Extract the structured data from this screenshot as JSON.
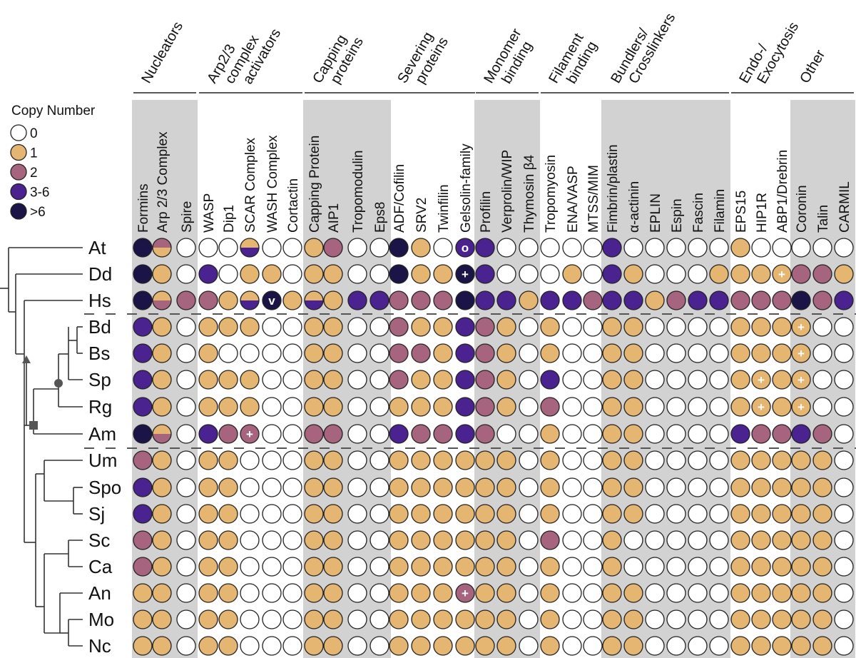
{
  "legend": {
    "title": "Copy Number",
    "items": [
      {
        "code": 0,
        "label": "0",
        "color": "#ffffff"
      },
      {
        "code": 1,
        "label": "1",
        "color": "#E5B672"
      },
      {
        "code": 2,
        "label": "2",
        "color": "#A7647F"
      },
      {
        "code": 3,
        "label": "3-6",
        "color": "#4B2390"
      },
      {
        "code": 4,
        "label": ">6",
        "color": "#1B1446"
      }
    ]
  },
  "chart_data": {
    "type": "heatmap",
    "categories": [
      "Formins",
      "Arp 2/3 Complex",
      "Spire",
      "WASP",
      "Dip1",
      "SCAR Complex",
      "WASH Complex",
      "Cortactin",
      "Capping Protein",
      "AIP1",
      "Tropomodulin",
      "Eps8",
      "ADF/Cofilin",
      "SRV2",
      "Twinfilin",
      "Gelsolin-family",
      "Profilin",
      "Verprolin/WIP",
      "Thymosin β4",
      "Tropomyosin",
      "ENA/VASP",
      "MTSS/MIM",
      "Fimbrin/plastin",
      "α-actinin",
      "EPLIN",
      "Espin",
      "Fascin",
      "Filamin",
      "EPS15",
      "HIP1R",
      "ABP1/Drebrin",
      "Coronin",
      "Talin",
      "CARMIL"
    ],
    "groups": [
      {
        "label": "Nucleators",
        "span": [
          0,
          2
        ],
        "shaded": true
      },
      {
        "label": "Arp2/3 complex activators",
        "span": [
          3,
          7
        ],
        "shaded": false
      },
      {
        "label": "Capping proteins",
        "span": [
          8,
          11
        ],
        "shaded": true
      },
      {
        "label": "Severing proteins",
        "span": [
          12,
          15
        ],
        "shaded": false
      },
      {
        "label": "Monomer binding",
        "span": [
          16,
          18
        ],
        "shaded": true
      },
      {
        "label": "Filament binding",
        "span": [
          19,
          21
        ],
        "shaded": false
      },
      {
        "label": "Bundlers/ Crosslinkers",
        "span": [
          22,
          27
        ],
        "shaded": true
      },
      {
        "label": "Endo-/ Exocytosis",
        "span": [
          28,
          30
        ],
        "shaded": false
      },
      {
        "label": "Other",
        "span": [
          31,
          33
        ],
        "shaded": true
      }
    ],
    "species": [
      "At",
      "Dd",
      "Hs",
      "Bd",
      "Bs",
      "Sp",
      "Rg",
      "Am",
      "Um",
      "Spo",
      "Sj",
      "Sc",
      "Ca",
      "An",
      "Mo",
      "Nc"
    ],
    "values": [
      [
        4,
        1,
        0,
        0,
        0,
        3,
        0,
        0,
        1,
        2,
        0,
        0,
        4,
        1,
        0,
        3,
        3,
        0,
        0,
        0,
        0,
        0,
        3,
        0,
        0,
        0,
        0,
        0,
        1,
        0,
        0,
        0,
        0,
        0
      ],
      [
        4,
        1,
        0,
        3,
        0,
        1,
        1,
        0,
        1,
        1,
        0,
        0,
        4,
        1,
        1,
        4,
        3,
        0,
        0,
        0,
        1,
        0,
        3,
        1,
        0,
        0,
        0,
        1,
        1,
        1,
        1,
        2,
        2,
        1
      ],
      [
        4,
        1,
        2,
        2,
        1,
        1,
        4,
        1,
        1,
        1,
        3,
        3,
        2,
        2,
        2,
        4,
        3,
        3,
        1,
        3,
        3,
        2,
        3,
        3,
        1,
        2,
        3,
        3,
        2,
        2,
        2,
        4,
        2,
        3
      ],
      [
        3,
        1,
        0,
        1,
        1,
        1,
        0,
        0,
        1,
        1,
        0,
        0,
        2,
        1,
        1,
        3,
        2,
        1,
        0,
        1,
        0,
        0,
        1,
        1,
        0,
        0,
        0,
        0,
        1,
        1,
        1,
        1,
        0,
        0
      ],
      [
        3,
        1,
        0,
        1,
        0,
        0,
        0,
        0,
        1,
        1,
        0,
        0,
        2,
        2,
        1,
        3,
        2,
        1,
        0,
        1,
        0,
        0,
        1,
        1,
        0,
        0,
        0,
        0,
        1,
        1,
        1,
        1,
        0,
        0
      ],
      [
        3,
        1,
        0,
        1,
        1,
        1,
        0,
        0,
        1,
        1,
        0,
        0,
        2,
        1,
        1,
        3,
        2,
        1,
        0,
        3,
        0,
        0,
        1,
        1,
        0,
        0,
        0,
        0,
        1,
        1,
        1,
        1,
        0,
        0
      ],
      [
        3,
        1,
        0,
        1,
        1,
        1,
        0,
        0,
        1,
        1,
        0,
        0,
        1,
        1,
        1,
        3,
        2,
        1,
        0,
        2,
        0,
        0,
        1,
        1,
        0,
        0,
        0,
        0,
        1,
        1,
        1,
        1,
        0,
        0
      ],
      [
        4,
        1,
        0,
        3,
        2,
        2,
        0,
        0,
        2,
        2,
        0,
        0,
        3,
        2,
        2,
        3,
        2,
        0,
        0,
        1,
        0,
        0,
        1,
        1,
        0,
        0,
        0,
        0,
        3,
        2,
        2,
        3,
        2,
        0
      ],
      [
        2,
        1,
        0,
        1,
        1,
        0,
        0,
        0,
        1,
        1,
        0,
        0,
        1,
        1,
        1,
        1,
        1,
        1,
        0,
        1,
        0,
        0,
        1,
        1,
        0,
        0,
        0,
        0,
        1,
        1,
        1,
        1,
        1,
        0
      ],
      [
        3,
        1,
        0,
        1,
        1,
        0,
        0,
        0,
        1,
        1,
        0,
        0,
        1,
        1,
        1,
        1,
        1,
        1,
        0,
        1,
        0,
        0,
        1,
        1,
        0,
        0,
        0,
        0,
        1,
        1,
        1,
        1,
        1,
        0
      ],
      [
        3,
        1,
        0,
        1,
        1,
        0,
        0,
        0,
        1,
        1,
        0,
        0,
        1,
        1,
        1,
        1,
        1,
        1,
        0,
        1,
        0,
        0,
        1,
        1,
        0,
        0,
        0,
        0,
        1,
        1,
        1,
        1,
        1,
        0
      ],
      [
        2,
        1,
        0,
        1,
        1,
        0,
        0,
        0,
        1,
        1,
        0,
        0,
        1,
        1,
        1,
        1,
        1,
        1,
        0,
        2,
        0,
        0,
        1,
        0,
        0,
        0,
        0,
        0,
        1,
        1,
        1,
        1,
        1,
        0
      ],
      [
        2,
        1,
        0,
        1,
        1,
        0,
        0,
        0,
        1,
        1,
        0,
        0,
        1,
        1,
        1,
        1,
        1,
        1,
        0,
        1,
        0,
        0,
        1,
        0,
        0,
        0,
        0,
        0,
        1,
        1,
        1,
        1,
        1,
        0
      ],
      [
        1,
        1,
        0,
        1,
        1,
        0,
        0,
        0,
        1,
        1,
        0,
        0,
        1,
        1,
        1,
        2,
        1,
        1,
        0,
        1,
        0,
        0,
        1,
        1,
        0,
        0,
        0,
        0,
        1,
        1,
        1,
        1,
        1,
        0
      ],
      [
        1,
        1,
        0,
        1,
        1,
        0,
        0,
        0,
        1,
        1,
        0,
        0,
        1,
        1,
        1,
        1,
        1,
        1,
        0,
        1,
        0,
        0,
        1,
        1,
        0,
        0,
        0,
        0,
        1,
        1,
        1,
        1,
        1,
        0
      ],
      [
        1,
        1,
        0,
        1,
        1,
        0,
        0,
        0,
        1,
        1,
        0,
        0,
        1,
        1,
        1,
        1,
        1,
        1,
        0,
        1,
        0,
        0,
        1,
        1,
        0,
        0,
        0,
        0,
        1,
        1,
        1,
        1,
        1,
        0
      ]
    ],
    "split_cells": [
      {
        "row": 0,
        "col": 1,
        "top": 2,
        "bottom": 1
      },
      {
        "row": 0,
        "col": 5,
        "top": 1,
        "bottom": 3
      },
      {
        "row": 2,
        "col": 1,
        "top": 1,
        "bottom": 2
      },
      {
        "row": 2,
        "col": 5,
        "top": 1,
        "bottom": 3
      },
      {
        "row": 2,
        "col": 8,
        "top": 1,
        "bottom": 3
      },
      {
        "row": 7,
        "col": 1,
        "top": 1,
        "bottom": 2
      }
    ],
    "cell_marks": [
      {
        "row": 0,
        "col": 15,
        "mark": "o"
      },
      {
        "row": 1,
        "col": 15,
        "mark": "+"
      },
      {
        "row": 1,
        "col": 30,
        "mark": "+"
      },
      {
        "row": 2,
        "col": 6,
        "mark": "v"
      },
      {
        "row": 3,
        "col": 31,
        "mark": "+"
      },
      {
        "row": 4,
        "col": 31,
        "mark": "+"
      },
      {
        "row": 5,
        "col": 29,
        "mark": "+"
      },
      {
        "row": 5,
        "col": 31,
        "mark": "+"
      },
      {
        "row": 6,
        "col": 29,
        "mark": "+"
      },
      {
        "row": 6,
        "col": 31,
        "mark": "+"
      },
      {
        "row": 7,
        "col": 5,
        "mark": "+"
      },
      {
        "row": 13,
        "col": 15,
        "mark": "+"
      }
    ],
    "tree_node_markers": [
      "triangle",
      "circle",
      "square"
    ]
  }
}
